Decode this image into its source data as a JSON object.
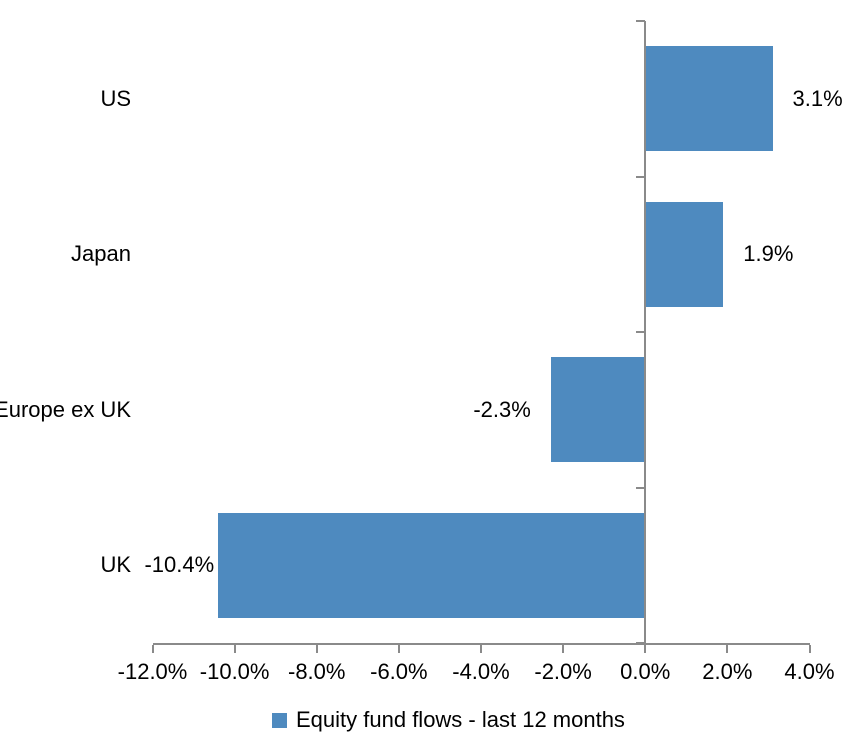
{
  "chart_data": {
    "type": "bar",
    "orientation": "horizontal",
    "title": "",
    "categories": [
      "US",
      "Japan",
      "Europe ex UK",
      "UK"
    ],
    "values": [
      3.1,
      1.9,
      -2.3,
      -10.4
    ],
    "data_labels": [
      "3.1%",
      "1.9%",
      "-2.3%",
      "-10.4%"
    ],
    "series_name": "Equity fund flows - last 12 months",
    "x_tick_labels": [
      "-12.0%",
      "-10.0%",
      "-8.0%",
      "-6.0%",
      "-4.0%",
      "-2.0%",
      "0.0%",
      "2.0%",
      "4.0%"
    ],
    "x_tick_values": [
      -12,
      -10,
      -8,
      -6,
      -4,
      -2,
      0,
      2,
      4
    ],
    "xlim": [
      -12,
      4
    ],
    "grid": false,
    "legend_position": "bottom-center",
    "colors": {
      "bar": "#4E8ABF",
      "axis": "#8A8A8A",
      "text": "#000000",
      "background": "#FFFFFF"
    }
  },
  "legend": {
    "label": "Equity fund flows - last 12 months"
  }
}
